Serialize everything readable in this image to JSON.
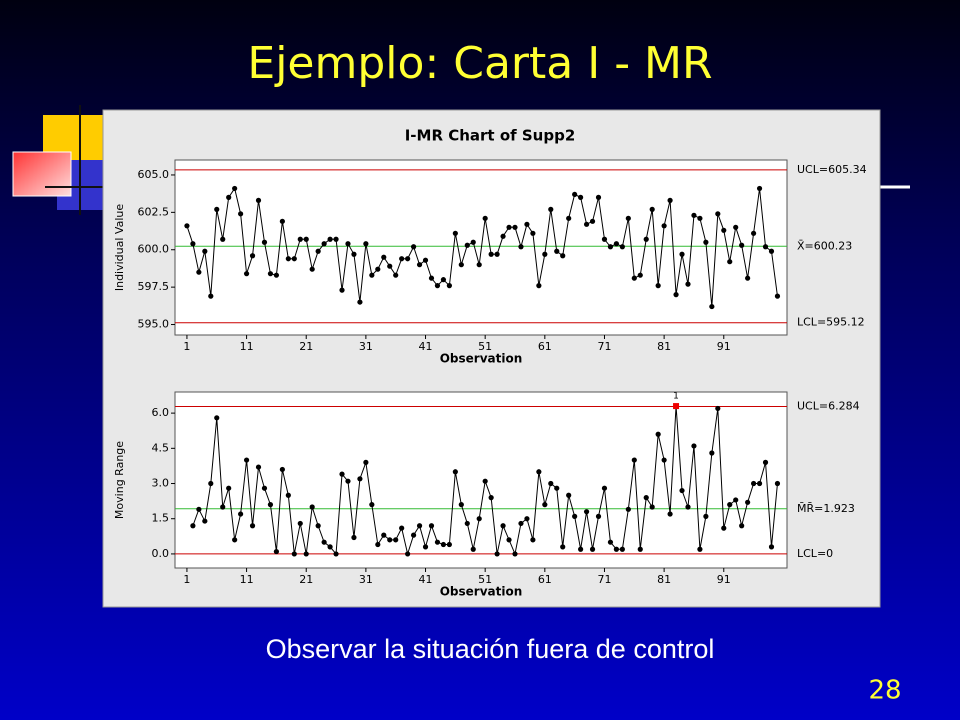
{
  "slide": {
    "title": "Ejemplo: Carta I - MR",
    "caption": "Observar la situación fuera de control",
    "page_number": "28"
  },
  "chart_data": [
    {
      "type": "line",
      "title": "I-MR Chart of Supp2",
      "xlabel": "Observation",
      "ylabel": "Individual Value",
      "color": "#000000",
      "x": [
        1,
        2,
        3,
        4,
        5,
        6,
        7,
        8,
        9,
        10,
        11,
        12,
        13,
        14,
        15,
        16,
        17,
        18,
        19,
        20,
        21,
        22,
        23,
        24,
        25,
        26,
        27,
        28,
        29,
        30,
        31,
        32,
        33,
        34,
        35,
        36,
        37,
        38,
        39,
        40,
        41,
        42,
        43,
        44,
        45,
        46,
        47,
        48,
        49,
        50,
        51,
        52,
        53,
        54,
        55,
        56,
        57,
        58,
        59,
        60,
        61,
        62,
        63,
        64,
        65,
        66,
        67,
        68,
        69,
        70,
        71,
        72,
        73,
        74,
        75,
        76,
        77,
        78,
        79,
        80,
        81,
        82,
        83,
        84,
        85,
        86,
        87,
        88,
        89,
        90,
        91,
        92,
        93,
        94,
        95,
        96,
        97,
        98,
        99,
        100
      ],
      "values": [
        601.6,
        600.4,
        598.5,
        599.9,
        596.9,
        602.7,
        600.7,
        603.5,
        604.1,
        602.4,
        598.4,
        599.6,
        603.3,
        600.5,
        598.4,
        598.3,
        601.9,
        599.4,
        599.4,
        600.7,
        600.7,
        598.7,
        599.9,
        600.4,
        600.7,
        600.7,
        597.3,
        600.4,
        599.7,
        596.5,
        600.4,
        598.3,
        598.7,
        599.5,
        598.9,
        598.3,
        599.4,
        599.4,
        600.2,
        599.0,
        599.3,
        598.1,
        597.6,
        598.0,
        597.6,
        601.1,
        599.0,
        600.3,
        600.5,
        599.0,
        602.1,
        599.7,
        599.7,
        600.9,
        601.5,
        601.5,
        600.2,
        601.7,
        601.1,
        597.6,
        599.7,
        602.7,
        599.9,
        599.6,
        602.1,
        603.7,
        603.5,
        601.7,
        601.9,
        603.5,
        600.7,
        600.2,
        600.4,
        600.2,
        602.1,
        598.1,
        598.3,
        600.7,
        602.7,
        597.6,
        601.6,
        603.3,
        597.0,
        599.7,
        597.7,
        602.3,
        602.1,
        600.5,
        596.2,
        602.4,
        601.3,
        599.2,
        601.5,
        600.3,
        598.1,
        601.1,
        604.1,
        600.2,
        599.9,
        596.9
      ],
      "xlim": [
        -1,
        101.6
      ],
      "xticks": [
        1,
        11,
        21,
        31,
        41,
        51,
        61,
        71,
        81,
        91
      ],
      "ylim": [
        594.3,
        606.0
      ],
      "yticks": [
        {
          "value": 595,
          "label": "595.0"
        },
        {
          "value": 597.5,
          "label": "597.5"
        },
        {
          "value": 600,
          "label": "600.0"
        },
        {
          "value": 602.5,
          "label": "602.5"
        },
        {
          "value": 605,
          "label": "605.0"
        }
      ],
      "control_limits": [
        {
          "value": 605.34,
          "label": "UCL=605.34",
          "color": "#cc0000"
        },
        {
          "value": 600.23,
          "label": "X̄=600.23",
          "color": "#33bb33"
        },
        {
          "value": 595.12,
          "label": "LCL=595.12",
          "color": "#cc0000"
        }
      ]
    },
    {
      "type": "line",
      "xlabel": "Observation",
      "ylabel": "Moving Range",
      "color": "#000000",
      "highlight_color": "#ee0000",
      "x": [
        1,
        2,
        3,
        4,
        5,
        6,
        7,
        8,
        9,
        10,
        11,
        12,
        13,
        14,
        15,
        16,
        17,
        18,
        19,
        20,
        21,
        22,
        23,
        24,
        25,
        26,
        27,
        28,
        29,
        30,
        31,
        32,
        33,
        34,
        35,
        36,
        37,
        38,
        39,
        40,
        41,
        42,
        43,
        44,
        45,
        46,
        47,
        48,
        49,
        50,
        51,
        52,
        53,
        54,
        55,
        56,
        57,
        58,
        59,
        60,
        61,
        62,
        63,
        64,
        65,
        66,
        67,
        68,
        69,
        70,
        71,
        72,
        73,
        74,
        75,
        76,
        77,
        78,
        79,
        80,
        81,
        82,
        83,
        84,
        85,
        86,
        87,
        88,
        89,
        90,
        91,
        92,
        93,
        94,
        95,
        96,
        97,
        98,
        99,
        100
      ],
      "values": [
        null,
        1.2,
        1.9,
        1.4,
        3.0,
        5.8,
        2.0,
        2.8,
        0.6,
        1.7,
        4.0,
        1.2,
        3.7,
        2.8,
        2.1,
        0.1,
        3.6,
        2.5,
        0.0,
        1.3,
        0.0,
        2.0,
        1.2,
        0.5,
        0.3,
        0.0,
        3.4,
        3.1,
        0.7,
        3.2,
        3.9,
        2.1,
        0.4,
        0.8,
        0.6,
        0.6,
        1.1,
        0.0,
        0.8,
        1.2,
        0.3,
        1.2,
        0.5,
        0.4,
        0.4,
        3.5,
        2.1,
        1.3,
        0.2,
        1.5,
        3.1,
        2.4,
        0.0,
        1.2,
        0.6,
        0.0,
        1.3,
        1.5,
        0.6,
        3.5,
        2.1,
        3.0,
        2.8,
        0.3,
        2.5,
        1.6,
        0.2,
        1.8,
        0.2,
        1.6,
        2.8,
        0.5,
        0.2,
        0.2,
        1.9,
        4.0,
        0.2,
        2.4,
        2.0,
        5.1,
        4.0,
        1.7,
        6.3,
        2.7,
        2.0,
        4.6,
        0.2,
        1.6,
        4.3,
        6.2,
        1.1,
        2.1,
        2.3,
        1.2,
        2.2,
        3.0,
        3.0,
        3.9,
        0.3,
        3.0
      ],
      "xlim": [
        -1,
        101.6
      ],
      "xticks": [
        1,
        11,
        21,
        31,
        41,
        51,
        61,
        71,
        81,
        91
      ],
      "ylim": [
        -0.6,
        6.9
      ],
      "yticks": [
        {
          "value": 0,
          "label": "0.0"
        },
        {
          "value": 1.5,
          "label": "1.5"
        },
        {
          "value": 3,
          "label": "3.0"
        },
        {
          "value": 4.5,
          "label": "4.5"
        },
        {
          "value": 6,
          "label": "6.0"
        }
      ],
      "control_limits": [
        {
          "value": 6.284,
          "label": "UCL=6.284",
          "color": "#cc0000"
        },
        {
          "value": 1.923,
          "label": "M̄R̄=1.923",
          "color": "#33bb33"
        },
        {
          "value": 0,
          "label": "LCL=0",
          "color": "#cc0000"
        }
      ],
      "annotations": [
        {
          "x": 83,
          "label": "1"
        }
      ]
    }
  ]
}
